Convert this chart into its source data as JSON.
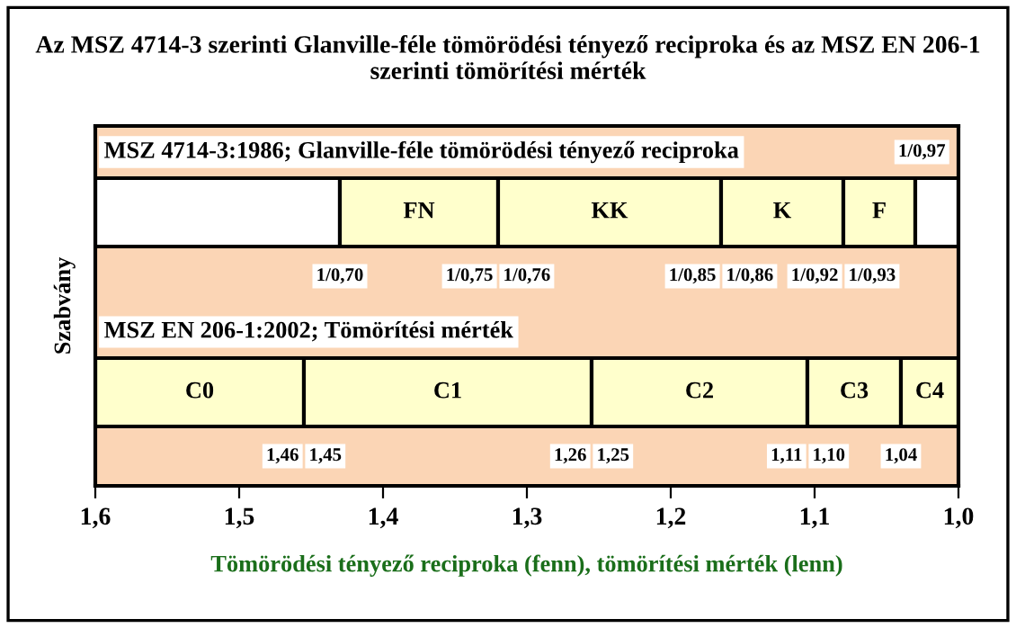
{
  "chart_data": {
    "type": "bar",
    "orientation": "horizontal",
    "title": "Az MSZ 4714-3 szerinti Glanville-féle tömörödési tényező reciproka és az MSZ EN 206-1 szerinti tömörítési mérték",
    "xlabel": "Tömörödési tényező reciproka (fenn), tömörítési mérték (lenn)",
    "ylabel": "Szabvány",
    "categories": [
      "MSZ 4714-3:1986; Glanville-féle tömörödési tényező reciproka",
      "MSZ EN 206-1:2002; Tömörítési mérték"
    ],
    "series": [
      {
        "color": "#ffffff",
        "values": [
          0.17,
          null
        ],
        "base": [
          1.43,
          null
        ]
      },
      {
        "name": "FN",
        "color": "#ffffcc",
        "values": [
          0.11,
          null
        ],
        "base": [
          1.32,
          null
        ]
      },
      {
        "name": "KK",
        "color": "#ffffcc",
        "values": [
          0.155,
          null
        ],
        "base": [
          1.165,
          null
        ]
      },
      {
        "name": "K",
        "color": "#ffffcc",
        "values": [
          0.085,
          null
        ],
        "base": [
          1.08,
          null
        ]
      },
      {
        "name": "F",
        "color": "#ffffcc",
        "values": [
          0.05,
          null
        ],
        "base": [
          1.03,
          null
        ]
      },
      {
        "color": "#ffffff",
        "values": [
          0.03,
          null
        ],
        "base": [
          1.0,
          null
        ]
      },
      {
        "name": "C0",
        "color": "#ffffcc",
        "values": [
          null,
          0.145
        ],
        "base": [
          null,
          1.455
        ]
      },
      {
        "name": "C1",
        "color": "#ffffcc",
        "values": [
          null,
          0.2
        ],
        "base": [
          null,
          1.255
        ]
      },
      {
        "name": "C2",
        "color": "#ffffcc",
        "values": [
          null,
          0.15
        ],
        "base": [
          null,
          1.105
        ]
      },
      {
        "name": "C3",
        "color": "#ffffcc",
        "values": [
          null,
          0.065
        ],
        "base": [
          null,
          1.04
        ]
      },
      {
        "name": "C4",
        "color": "#ffffcc",
        "values": [
          null,
          0.04
        ],
        "base": [
          null,
          1.0
        ]
      }
    ],
    "annotations": [
      "1/0,97",
      {
        "text": "1/0,70",
        "x": 1.43,
        "y": "MSZ 4714-3:1986; Glanville-féle tömörödési tényező reciproka"
      },
      {
        "text": "1/0,75",
        "x": 1.32,
        "y": "MSZ 4714-3:1986; Glanville-féle tömörödési tényező reciproka"
      },
      {
        "text": "1/0,76",
        "x": 1.32,
        "y": "MSZ 4714-3:1986; Glanville-féle tömörödési tényező reciproka"
      },
      {
        "text": "1/0,85",
        "x": 1.165,
        "y": "MSZ 4714-3:1986; Glanville-féle tömörödési tényező reciproka"
      },
      {
        "text": "1/0,86",
        "x": 1.165,
        "y": "MSZ 4714-3:1986; Glanville-féle tömörödési tényező reciproka"
      },
      {
        "text": "1/0,92",
        "x": 1.08,
        "y": "MSZ 4714-3:1986; Glanville-féle tömörödési tényező reciproka"
      },
      {
        "text": "1/0,93",
        "x": 1.08,
        "y": "MSZ 4714-3:1986; Glanville-féle tömörödési tényező reciproka"
      },
      {
        "text": "1,46",
        "x": 1.455,
        "y": "MSZ EN 206-1:2002; Tömörítési mérték"
      },
      {
        "text": "1,45",
        "x": 1.455,
        "y": "MSZ EN 206-1:2002; Tömörítési mérték"
      },
      {
        "text": "1,26",
        "x": 1.255,
        "y": "MSZ EN 206-1:2002; Tömörítési mérték"
      },
      {
        "text": "1,25",
        "x": 1.255,
        "y": "MSZ EN 206-1:2002; Tömörítési mérték"
      },
      {
        "text": "1,11",
        "x": 1.105,
        "y": "MSZ EN 206-1:2002; Tömörítési mérték"
      },
      {
        "text": "1,10",
        "x": 1.105,
        "y": "MSZ EN 206-1:2002; Tömörítési mérték"
      },
      {
        "text": "1,04",
        "x": 1.04,
        "y": "MSZ EN 206-1:2002; Tömörítési mérték"
      }
    ],
    "xlim": [
      1.6,
      1.0
    ],
    "xticks": [
      {
        "value": 1.6,
        "label": "1,6"
      },
      {
        "value": 1.5,
        "label": "1,5"
      },
      {
        "value": 1.4,
        "label": "1,4"
      },
      {
        "value": 1.3,
        "label": "1,3"
      },
      {
        "value": 1.2,
        "label": "1,2"
      },
      {
        "value": 1.1,
        "label": "1,1"
      },
      {
        "value": 1.0,
        "label": "1,0"
      }
    ],
    "tick_labels": "x"
  }
}
